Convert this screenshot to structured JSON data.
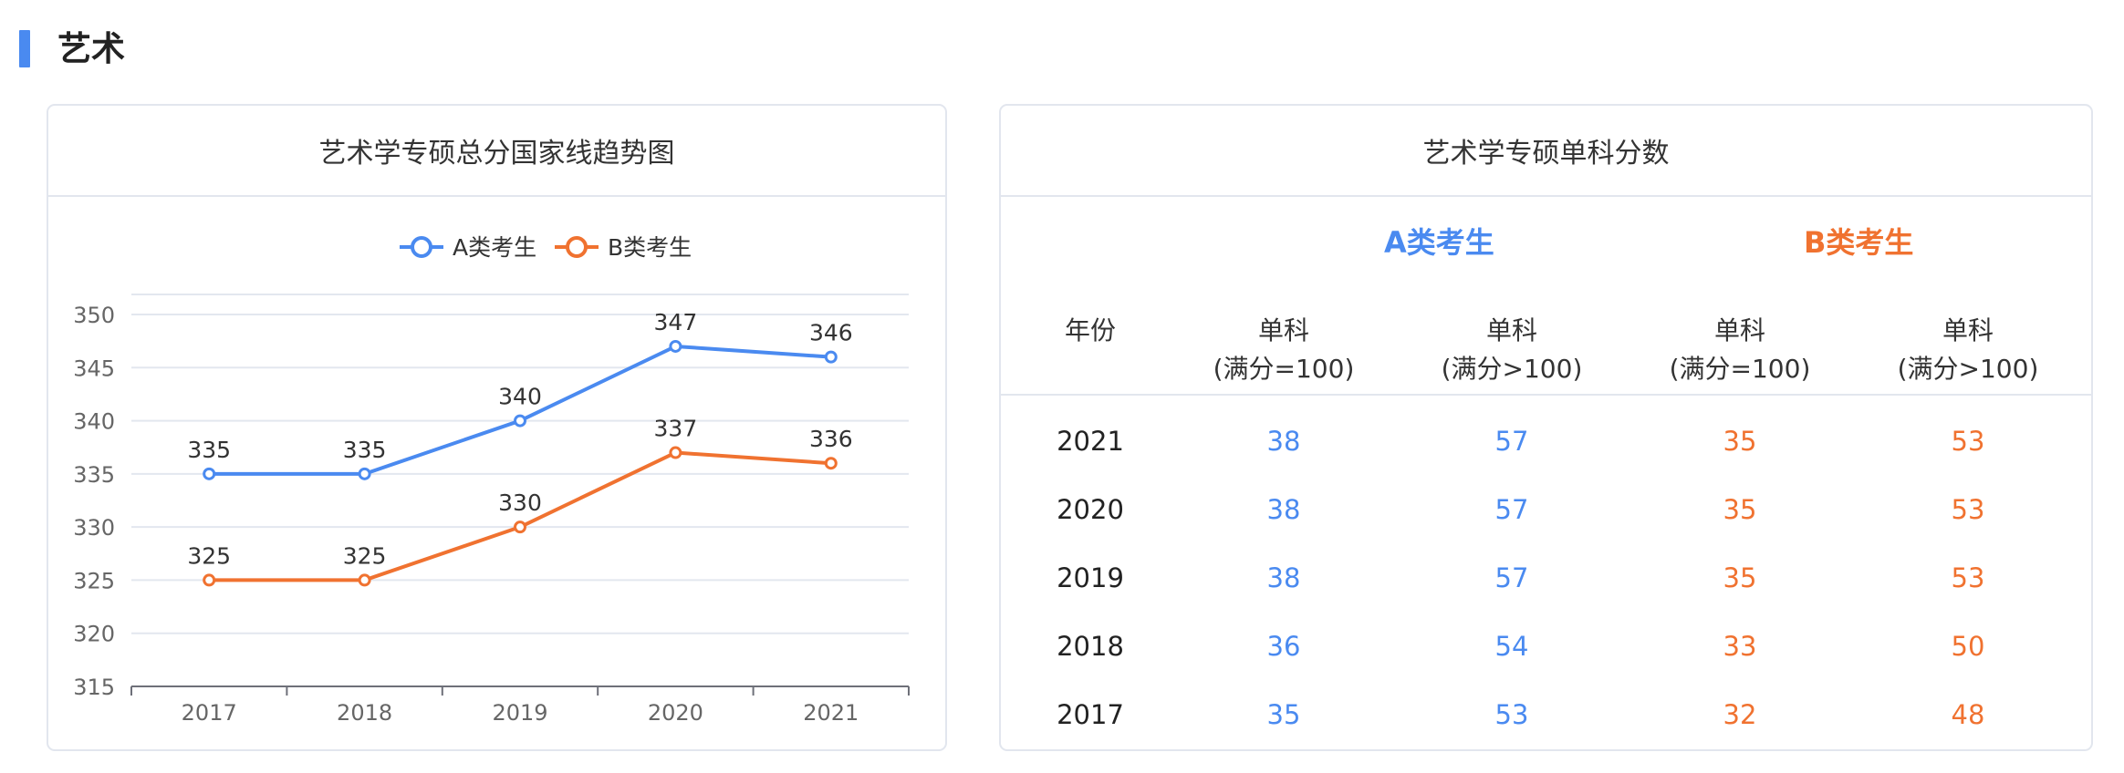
{
  "section": {
    "title": "艺术"
  },
  "chart_panel": {
    "title": "艺术学专硕总分国家线趋势图"
  },
  "chart_data": {
    "type": "line",
    "title": "艺术学专硕总分国家线趋势图",
    "x": [
      "2017",
      "2018",
      "2019",
      "2020",
      "2021"
    ],
    "series": [
      {
        "name": "A类考生",
        "values": [
          335,
          335,
          340,
          347,
          346
        ],
        "color": "#4a8af0"
      },
      {
        "name": "B类考生",
        "values": [
          325,
          325,
          330,
          337,
          336
        ],
        "color": "#f07230"
      }
    ],
    "ylim": [
      315,
      350
    ],
    "yticks": [
      315,
      320,
      325,
      330,
      335,
      340,
      345,
      350
    ],
    "grid": true,
    "legend": "top-center",
    "data_labels": true
  },
  "table_panel": {
    "title": "艺术学专硕单科分数",
    "group_a": "A类考生",
    "group_b": "B类考生",
    "headers": [
      {
        "line1": "年份",
        "line2": ""
      },
      {
        "line1": "单科",
        "line2": "(满分=100)"
      },
      {
        "line1": "单科",
        "line2": "(满分>100)"
      },
      {
        "line1": "单科",
        "line2": "(满分=100)"
      },
      {
        "line1": "单科",
        "line2": "(满分>100)"
      }
    ],
    "rows": [
      {
        "year": "2021",
        "a100": "38",
        "a_gt100": "57",
        "b100": "35",
        "b_gt100": "53"
      },
      {
        "year": "2020",
        "a100": "38",
        "a_gt100": "57",
        "b100": "35",
        "b_gt100": "53"
      },
      {
        "year": "2019",
        "a100": "38",
        "a_gt100": "57",
        "b100": "35",
        "b_gt100": "53"
      },
      {
        "year": "2018",
        "a100": "36",
        "a_gt100": "54",
        "b100": "33",
        "b_gt100": "50"
      },
      {
        "year": "2017",
        "a100": "35",
        "a_gt100": "53",
        "b100": "32",
        "b_gt100": "48"
      }
    ]
  }
}
